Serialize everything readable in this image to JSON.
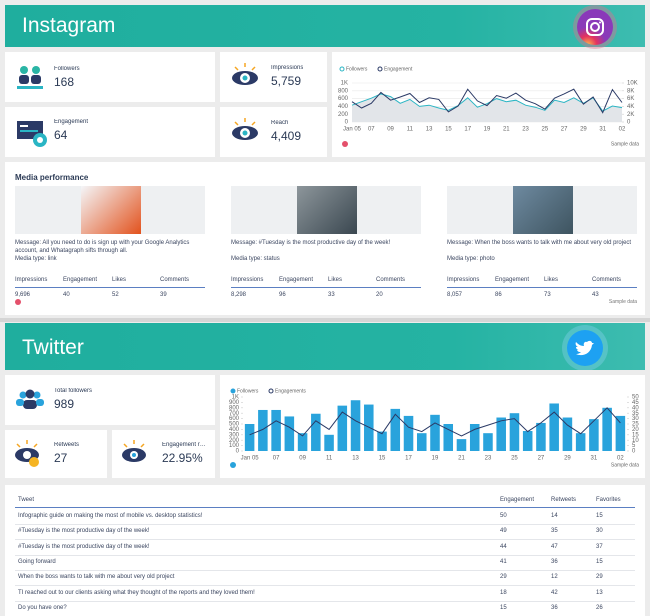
{
  "instagram": {
    "title": "Instagram",
    "kpis": [
      {
        "label": "Followers",
        "value": "168"
      },
      {
        "label": "Engagement",
        "value": "64"
      },
      {
        "label": "Impressions",
        "value": "5,759"
      },
      {
        "label": "Reach",
        "value": "4,409"
      }
    ],
    "chart": {
      "type": "line",
      "categories": [
        "Jan 05",
        null,
        "07",
        null,
        "09",
        null,
        "11",
        null,
        "13",
        null,
        "15",
        null,
        "17",
        null,
        "19",
        null,
        "21",
        null,
        "23",
        null,
        "25",
        null,
        "27",
        null,
        "29",
        null,
        "31",
        null,
        "02"
      ],
      "series": [
        {
          "name": "Followers",
          "color": "#2ab5c4",
          "type": "area",
          "values": [
            430,
            520,
            610,
            720,
            650,
            480,
            580,
            400,
            430,
            360,
            300,
            420,
            620,
            380,
            470,
            600,
            520,
            560,
            430,
            380,
            300,
            560,
            500,
            620,
            480,
            620,
            280,
            410,
            370
          ]
        },
        {
          "name": "Engagement",
          "color": "#2b3a66",
          "axis": "y2",
          "values": [
            5200,
            3600,
            4800,
            7600,
            5600,
            6400,
            7300,
            5000,
            6200,
            5800,
            2600,
            4100,
            8400,
            5400,
            4200,
            6800,
            6100,
            7400,
            5600,
            4700,
            3300,
            6100,
            7200,
            8400,
            4600,
            6400,
            2400,
            8300,
            5000
          ]
        }
      ],
      "ylim": [
        0,
        1000
      ],
      "yticks": [
        0,
        200,
        400,
        600,
        800,
        {
          "value": 1000,
          "label": "1K"
        }
      ],
      "y2lim": [
        0,
        10000
      ],
      "y2ticks": [
        0,
        {
          "value": 2000,
          "label": "2K"
        },
        {
          "value": 4000,
          "label": "4K"
        },
        {
          "value": 6000,
          "label": "6K"
        },
        {
          "value": 8000,
          "label": "8K"
        },
        {
          "value": 10000,
          "label": "10K"
        }
      ],
      "grid": true,
      "note": "Sample data"
    },
    "media": {
      "title": "Media performance",
      "columns": [
        "Impressions",
        "Engagement",
        "Likes",
        "Comments"
      ],
      "posts": [
        {
          "message": "Message: All you need to do is sign up with your Google Analytics account, and Whatagraph sifts through all.",
          "media_type": "Media type: link",
          "stats": [
            "9,696",
            "40",
            "52",
            "39"
          ]
        },
        {
          "message": "Message: #Tuesday is the most productive day of the week!",
          "media_type": "Media type: status",
          "stats": [
            "8,298",
            "96",
            "33",
            "20"
          ]
        },
        {
          "message": "Message: When the boss wants to talk with me about very old project",
          "media_type": "Media type: photo",
          "stats": [
            "8,057",
            "86",
            "73",
            "43"
          ]
        }
      ],
      "note": "Sample data"
    }
  },
  "twitter": {
    "title": "Twitter",
    "kpis": [
      {
        "label": "Total followers",
        "value": "989"
      },
      {
        "label": "Retweets",
        "value": "27"
      },
      {
        "label": "Engagement rate",
        "value": "22.95%"
      }
    ],
    "chart": {
      "type": "bar",
      "categories": [
        "Jan 05",
        null,
        "07",
        null,
        "09",
        null,
        "11",
        null,
        "13",
        null,
        "15",
        null,
        "17",
        null,
        "19",
        null,
        "21",
        null,
        "23",
        null,
        "25",
        null,
        "27",
        null,
        "29",
        null,
        "31",
        null,
        "02"
      ],
      "series": [
        {
          "name": "Followers",
          "color": "#29a3dc",
          "values": [
            500,
            760,
            760,
            640,
            330,
            690,
            300,
            840,
            940,
            860,
            360,
            780,
            650,
            330,
            670,
            500,
            220,
            500,
            330,
            620,
            700,
            370,
            520,
            880,
            620,
            330,
            590,
            800,
            650
          ]
        },
        {
          "name": "Engagements",
          "color": "#2b3a66",
          "axis": "y2",
          "type": "line",
          "values": [
            15,
            20,
            28,
            22,
            14,
            28,
            20,
            36,
            28,
            22,
            16,
            34,
            22,
            18,
            26,
            20,
            14,
            20,
            24,
            28,
            30,
            18,
            26,
            36,
            24,
            16,
            28,
            40,
            26
          ]
        }
      ],
      "ylim": [
        0,
        1000
      ],
      "yticks": [
        0,
        100,
        200,
        300,
        400,
        500,
        600,
        700,
        800,
        900,
        {
          "value": 1000,
          "label": "1K"
        }
      ],
      "y2lim": [
        0,
        50
      ],
      "y2ticks": [
        0,
        5,
        10,
        15,
        20,
        25,
        30,
        35,
        40,
        45,
        50
      ],
      "grid": false,
      "note": "Sample data"
    },
    "table": {
      "columns": [
        "Tweet",
        "Engagement",
        "Retweets",
        "Favorites"
      ],
      "rows": [
        [
          "Infographic guide on making the most of mobile vs. desktop statistics!",
          "50",
          "14",
          "15"
        ],
        [
          "#Tuesday is the most productive day of the week!",
          "49",
          "35",
          "30"
        ],
        [
          "#Tuesday is the most productive day of the week!",
          "44",
          "47",
          "37"
        ],
        [
          "Going forward",
          "41",
          "36",
          "15"
        ],
        [
          "When the boss wants to talk with me about very old project",
          "29",
          "12",
          "29"
        ],
        [
          "TI reached out to our clients asking what they thought of the reports and they loved them!",
          "18",
          "42",
          "13"
        ],
        [
          "Do you have one?",
          "15",
          "36",
          "26"
        ]
      ]
    }
  }
}
